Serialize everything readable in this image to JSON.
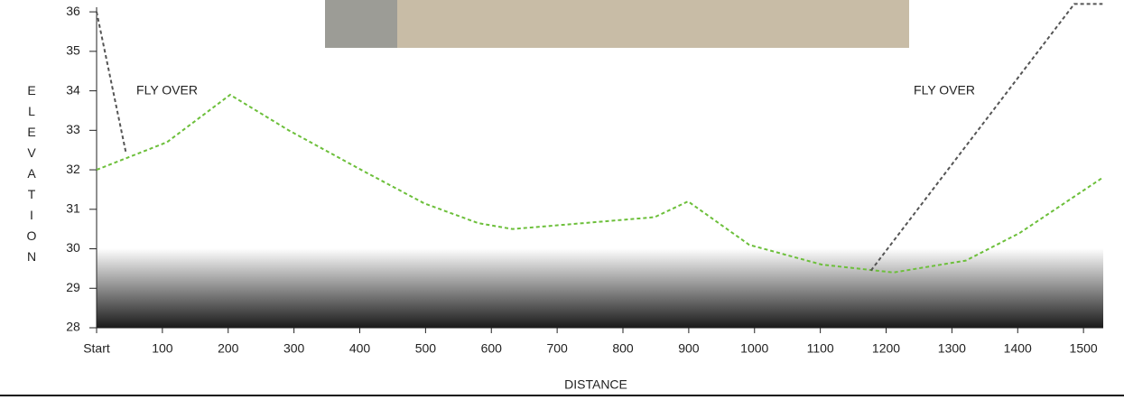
{
  "chart_data": {
    "type": "line",
    "y_label": "ELEVATION",
    "x_label": "DISTANCE",
    "annotations": [
      "FLY OVER",
      "FLY OVER"
    ],
    "xlim": [
      0,
      1530
    ],
    "ylim": [
      28,
      36.3
    ],
    "xticks": [
      {
        "value": 0,
        "label": "Start"
      },
      100,
      200,
      300,
      400,
      500,
      600,
      700,
      800,
      900,
      1000,
      1100,
      1200,
      1300,
      1400,
      1500
    ],
    "yticks": [
      28,
      29,
      30,
      31,
      32,
      33,
      34,
      35,
      36
    ],
    "series": [
      {
        "color": "#6cbf3a",
        "x": [
          0,
          107,
          203,
          292,
          402,
          498,
          580,
          632,
          848,
          899,
          992,
          1102,
          1211,
          1321,
          1403,
          1529
        ],
        "values": [
          32.0,
          32.7,
          33.9,
          33.0,
          32.0,
          31.15,
          30.65,
          30.5,
          30.8,
          31.2,
          30.1,
          29.6,
          29.4,
          29.7,
          30.4,
          31.8
        ]
      },
      {
        "color": "#555555",
        "x": [
          0,
          45,
          600,
          1177,
          1486,
          1529
        ],
        "values": [
          36.0,
          32.4,
          null,
          29.45,
          36.2,
          36.2
        ]
      }
    ]
  }
}
